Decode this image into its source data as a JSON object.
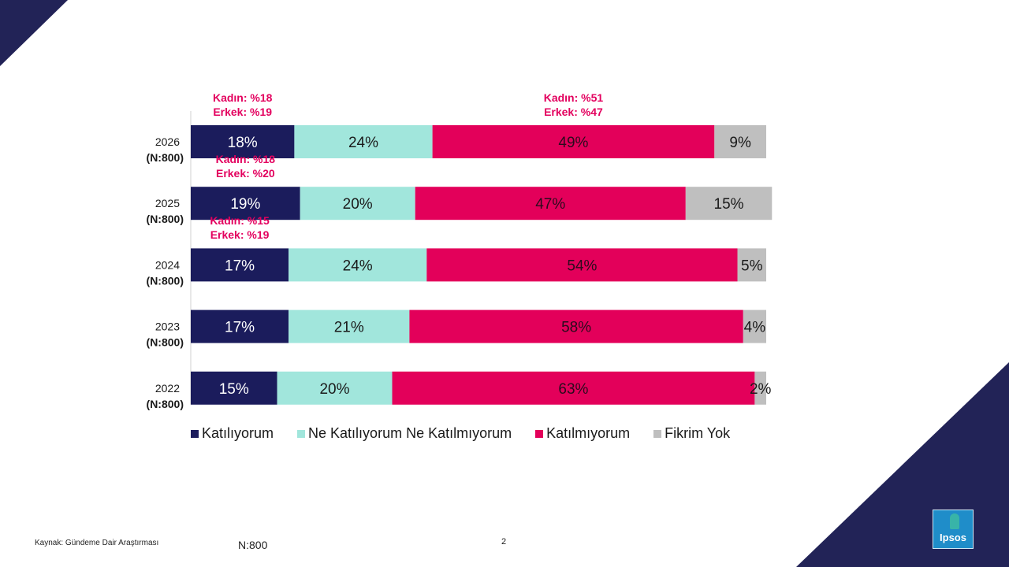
{
  "chart_data": {
    "type": "bar",
    "orientation": "horizontal",
    "stacked": true,
    "categories": [
      "2026\n(N:800)",
      "2025\n(N:800)",
      "2024\n(N:800)",
      "2023\n(N:800)",
      "2022\n(N:800)"
    ],
    "category_lines": [
      [
        "2026",
        "(N:800)"
      ],
      [
        "2025",
        "(N:800)"
      ],
      [
        "2024",
        "(N:800)"
      ],
      [
        "2023",
        "(N:800)"
      ],
      [
        "2022",
        "(N:800)"
      ]
    ],
    "series": [
      {
        "name": "Katılıyorum",
        "color": "#1b1c5c",
        "text_color": "#ffffff",
        "values": [
          18,
          19,
          17,
          17,
          15
        ]
      },
      {
        "name": "Ne Katılıyorum Ne Katılmıyorum",
        "color": "#a1e6dc",
        "text_color": "#1a1a1a",
        "values": [
          24,
          20,
          24,
          21,
          20
        ]
      },
      {
        "name": "Katılmıyorum",
        "color": "#e3005a",
        "text_color": "#2a0b1d",
        "values": [
          49,
          47,
          54,
          58,
          63
        ]
      },
      {
        "name": "Fikrim Yok",
        "color": "#bfbfbf",
        "text_color": "#1a1a1a",
        "values": [
          9,
          15,
          5,
          4,
          2
        ]
      }
    ],
    "value_format": "%",
    "legend_position": "bottom",
    "grid": false,
    "annotations": [
      {
        "lines": [
          "Kadın: %18",
          "Erkek: %19"
        ],
        "row": "2026",
        "series": "Katılıyorum"
      },
      {
        "lines": [
          "Kadın: %51",
          "Erkek: %47"
        ],
        "row": "2026",
        "series": "Katılmıyorum"
      },
      {
        "lines": [
          "Kadın: %18",
          "Erkek: %20"
        ],
        "row": "2025",
        "series": "Katılıyorum"
      },
      {
        "lines": [
          "Kadın: %15",
          "Erkek: %19"
        ],
        "row": "2024",
        "series": "Katılıyorum"
      }
    ]
  },
  "footer": {
    "source": "Kaynak: Gündeme Dair Araştırması",
    "sample": "N:800",
    "page_number": "2"
  },
  "logo": {
    "text": "Ipsos"
  }
}
